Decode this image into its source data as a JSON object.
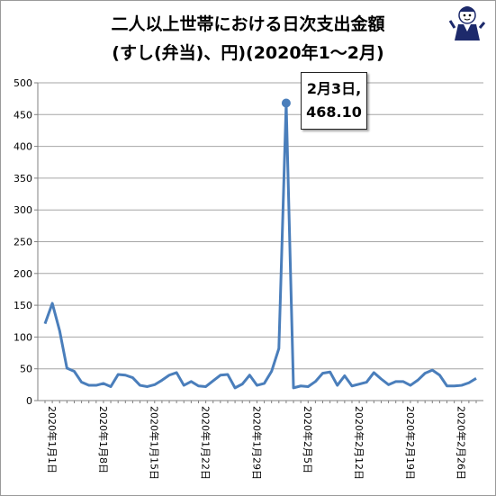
{
  "title": {
    "line1": "二人以上世帯における日次支出金額",
    "line2": "(すし(弁当)、円)(2020年1〜2月)"
  },
  "callout": {
    "date": "2月3日,",
    "value": "468.10"
  },
  "colors": {
    "line": "#4a7ebb",
    "grid": "#a6a6a6",
    "axis": "#808080"
  },
  "mascot_icon": "cartoon-mascot-icon",
  "chart_data": {
    "type": "line",
    "ylim": [
      0,
      500
    ],
    "yticks": [
      0,
      50,
      100,
      150,
      200,
      250,
      300,
      350,
      400,
      450,
      500
    ],
    "grid": "horizontal",
    "xtick_labels": [
      {
        "index": 0,
        "label": "2020年1月1日"
      },
      {
        "index": 7,
        "label": "2020年1月8日"
      },
      {
        "index": 14,
        "label": "2020年1月15日"
      },
      {
        "index": 21,
        "label": "2020年1月22日"
      },
      {
        "index": 28,
        "label": "2020年1月29日"
      },
      {
        "index": 35,
        "label": "2020年2月5日"
      },
      {
        "index": 42,
        "label": "2020年2月12日"
      },
      {
        "index": 49,
        "label": "2020年2月19日"
      },
      {
        "index": 56,
        "label": "2020年2月26日"
      }
    ],
    "highlight": {
      "index": 33,
      "value": 468.1
    },
    "values": [
      121,
      153,
      110,
      51,
      46,
      29,
      24,
      24,
      27,
      22,
      41,
      40,
      36,
      24,
      22,
      25,
      32,
      40,
      44,
      24,
      30,
      23,
      22,
      31,
      40,
      41,
      20,
      26,
      40,
      24,
      27,
      46,
      82,
      468.1,
      20,
      23,
      22,
      30,
      43,
      45,
      24,
      39,
      23,
      26,
      29,
      44,
      34,
      25,
      30,
      30,
      24,
      32,
      43,
      48,
      40,
      23,
      23,
      24,
      28,
      35
    ]
  }
}
